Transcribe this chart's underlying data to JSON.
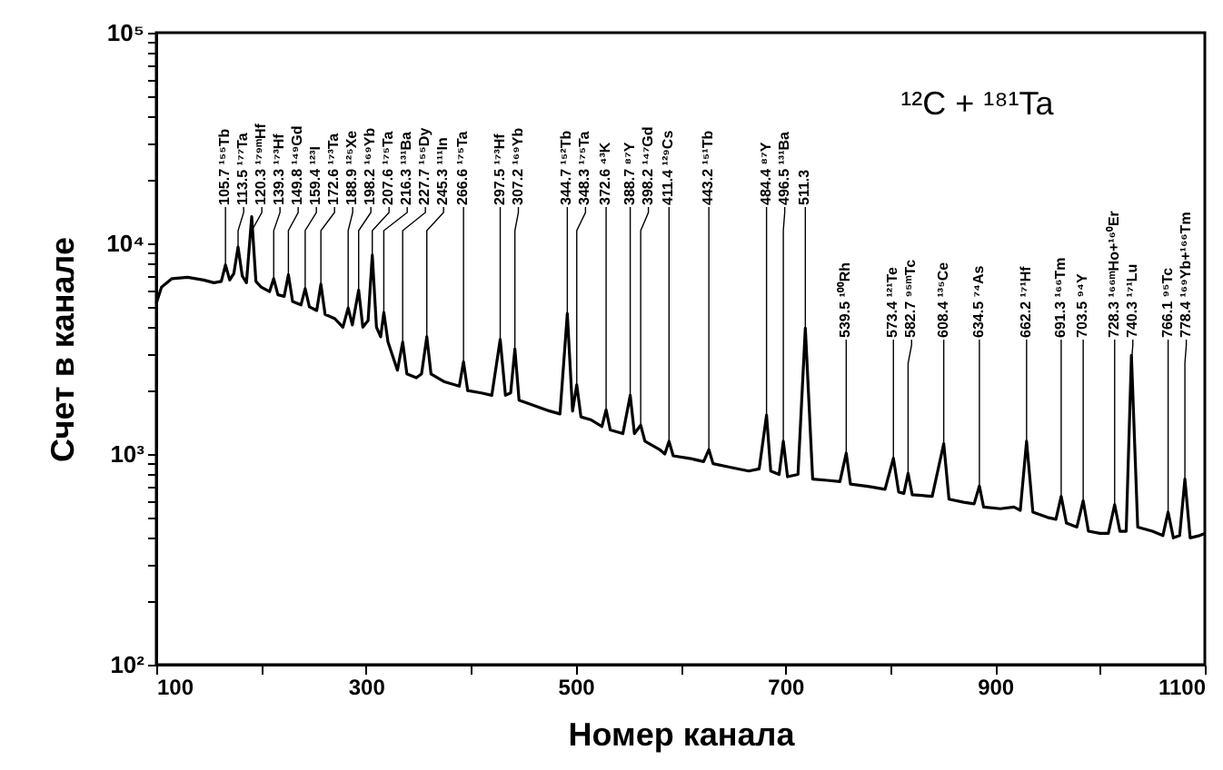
{
  "chart_data": {
    "type": "line",
    "title": "¹²C + ¹⁸¹Ta",
    "xlabel": "Номер канала",
    "ylabel": "Счет   в канале",
    "log": "y",
    "grid": false,
    "marker": "none",
    "line_style": "solid",
    "xlim": [
      100,
      1100
    ],
    "ylim": [
      100,
      100000
    ],
    "xticks": [
      100,
      {
        "value": 200,
        "label": null
      },
      300,
      {
        "value": 400,
        "label": null
      },
      500,
      {
        "value": 600,
        "label": null
      },
      700,
      {
        "value": 800,
        "label": null
      },
      900,
      {
        "value": 1000,
        "label": null
      },
      1100
    ],
    "yticks": [
      {
        "value": 100,
        "label": "10²"
      },
      {
        "value": 200,
        "label": null
      },
      {
        "value": 300,
        "label": null
      },
      {
        "value": 400,
        "label": null
      },
      {
        "value": 500,
        "label": null
      },
      {
        "value": 600,
        "label": null
      },
      {
        "value": 700,
        "label": null
      },
      {
        "value": 800,
        "label": null
      },
      {
        "value": 900,
        "label": null
      },
      {
        "value": 1000,
        "label": "10³"
      },
      {
        "value": 2000,
        "label": null
      },
      {
        "value": 3000,
        "label": null
      },
      {
        "value": 4000,
        "label": null
      },
      {
        "value": 5000,
        "label": null
      },
      {
        "value": 6000,
        "label": null
      },
      {
        "value": 7000,
        "label": null
      },
      {
        "value": 8000,
        "label": null
      },
      {
        "value": 9000,
        "label": null
      },
      {
        "value": 10000,
        "label": "10⁴"
      },
      {
        "value": 20000,
        "label": null
      },
      {
        "value": 30000,
        "label": null
      },
      {
        "value": 40000,
        "label": null
      },
      {
        "value": 50000,
        "label": null
      },
      {
        "value": 60000,
        "label": null
      },
      {
        "value": 70000,
        "label": null
      },
      {
        "value": 80000,
        "label": null
      },
      {
        "value": 90000,
        "label": null
      },
      {
        "value": 100000,
        "label": "10⁵"
      }
    ],
    "series": [
      {
        "color": "#000000",
        "x": [
          100,
          105,
          115,
          130,
          145,
          155,
          162,
          166,
          170,
          174,
          178,
          182,
          186,
          191,
          195,
          200,
          208,
          212,
          216,
          222,
          226,
          230,
          238,
          242,
          246,
          253,
          257,
          261,
          270,
          278,
          283,
          287,
          293,
          297,
          302,
          306,
          310,
          314,
          317,
          321,
          330,
          335,
          339,
          348,
          353,
          358,
          362,
          375,
          389,
          393,
          397,
          410,
          420,
          428,
          433,
          438,
          442,
          446,
          460,
          475,
          485,
          492,
          497,
          501,
          505,
          515,
          525,
          529,
          533,
          545,
          552,
          556,
          562,
          566,
          580,
          585,
          589,
          593,
          610,
          622,
          627,
          631,
          650,
          665,
          675,
          682,
          686,
          694,
          698,
          702,
          712,
          719,
          726,
          740,
          752,
          758,
          762,
          780,
          795,
          803,
          808,
          813,
          817,
          821,
          840,
          851,
          856,
          870,
          880,
          885,
          889,
          905,
          918,
          924,
          930,
          936,
          950,
          958,
          963,
          968,
          978,
          984,
          989,
          1000,
          1008,
          1014,
          1019,
          1025,
          1030,
          1036,
          1050,
          1060,
          1065,
          1070,
          1076,
          1081,
          1086,
          1095,
          1100
        ],
        "values": [
          5200,
          6200,
          6800,
          6900,
          6700,
          6500,
          6600,
          7900,
          6700,
          7200,
          9600,
          7000,
          6500,
          13400,
          6600,
          6200,
          5900,
          6800,
          5700,
          5600,
          7100,
          5300,
          5100,
          6100,
          5000,
          4800,
          6400,
          4600,
          4400,
          4000,
          4940,
          4100,
          6000,
          4000,
          4300,
          8800,
          4000,
          3600,
          4700,
          3400,
          2500,
          3400,
          2400,
          2300,
          2400,
          3600,
          2400,
          2200,
          2100,
          2740,
          2000,
          1950,
          1900,
          3500,
          1900,
          1950,
          3150,
          1800,
          1700,
          1600,
          1550,
          4640,
          1600,
          2130,
          1500,
          1450,
          1350,
          1620,
          1300,
          1250,
          1900,
          1250,
          1370,
          1150,
          1050,
          1000,
          1150,
          980,
          950,
          920,
          1050,
          900,
          860,
          830,
          850,
          1530,
          830,
          800,
          1150,
          780,
          800,
          3960,
          760,
          750,
          740,
          1010,
          720,
          700,
          680,
          955,
          660,
          650,
          810,
          640,
          630,
          1120,
          610,
          590,
          580,
          705,
          560,
          550,
          560,
          540,
          1150,
          530,
          500,
          490,
          630,
          470,
          450,
          600,
          430,
          420,
          420,
          575,
          430,
          430,
          2940,
          450,
          430,
          410,
          530,
          400,
          410,
          760,
          400,
          410,
          420
        ]
      }
    ],
    "annotations": [
      {
        "text": "105.7 ¹⁵⁵Tb",
        "x": 166,
        "y": 7900
      },
      {
        "text": "113.5 ¹⁷⁷Ta",
        "x": 178,
        "y": 9600
      },
      {
        "text": "120.3 ¹⁷⁹ᵐHf",
        "x": 191,
        "y": 13400
      },
      {
        "text": "139.3 ¹⁷³Hf",
        "x": 212,
        "y": 6800
      },
      {
        "text": "149.8 ¹⁴⁹Gd",
        "x": 226,
        "y": 7100
      },
      {
        "text": "159.4 ¹²³I",
        "x": 242,
        "y": 6100
      },
      {
        "text": "172.6 ¹⁷³Ta",
        "x": 257,
        "y": 6400
      },
      {
        "text": "188.9 ¹²⁵Xe",
        "x": 283,
        "y": 4940
      },
      {
        "text": "198.2 ¹⁶⁹Yb",
        "x": 293,
        "y": 6000
      },
      {
        "text": "207.6 ¹⁷⁵Ta",
        "x": 306,
        "y": 8800
      },
      {
        "text": "216.3 ¹³¹Ba",
        "x": 317,
        "y": 4700
      },
      {
        "text": "227.7 ¹⁵⁵Dy",
        "x": 335,
        "y": 3400
      },
      {
        "text": "245.3 ¹¹¹In",
        "x": 358,
        "y": 3600
      },
      {
        "text": "266.6 ¹⁷⁵Ta",
        "x": 393,
        "y": 2740
      },
      {
        "text": "297.5 ¹⁷³Hf",
        "x": 428,
        "y": 3500
      },
      {
        "text": "307.2 ¹⁶⁹Yb",
        "x": 442,
        "y": 3150
      },
      {
        "text": "344.7 ¹⁵²Tb",
        "x": 492,
        "y": 4640
      },
      {
        "text": "348.3 ¹⁷⁵Ta",
        "x": 501,
        "y": 2130
      },
      {
        "text": "372.6 ⁴³K",
        "x": 529,
        "y": 1620
      },
      {
        "text": "388.7 ⁸⁷Y",
        "x": 552,
        "y": 1900
      },
      {
        "text": "398.2 ¹⁴⁷Gd",
        "x": 562,
        "y": 1370
      },
      {
        "text": "411.4 ¹²⁹Cs",
        "x": 589,
        "y": 1150
      },
      {
        "text": "443.2 ¹⁵¹Tb",
        "x": 627,
        "y": 1050
      },
      {
        "text": "484.4 ⁸⁷Y",
        "x": 682,
        "y": 1530
      },
      {
        "text": "496.5 ¹³¹Ba",
        "x": 698,
        "y": 1150
      },
      {
        "text": "511.3",
        "x": 719,
        "y": 3960
      },
      {
        "text": "539.5 ¹⁰⁰Rh",
        "x": 758,
        "y": 1010
      },
      {
        "text": "573.4 ¹²¹Te",
        "x": 803,
        "y": 955
      },
      {
        "text": "582.7 ⁹⁵ᵐTc",
        "x": 817,
        "y": 810
      },
      {
        "text": "608.4 ¹³⁵Ce",
        "x": 851,
        "y": 1120
      },
      {
        "text": "634.5 ⁷⁴As",
        "x": 885,
        "y": 705
      },
      {
        "text": "662.2 ¹⁷¹Hf",
        "x": 930,
        "y": 1150
      },
      {
        "text": "691.3 ¹⁶⁶Tm",
        "x": 963,
        "y": 630
      },
      {
        "text": "703.5 ⁹⁴Y",
        "x": 984,
        "y": 600
      },
      {
        "text": "728.3 ¹⁶⁶ᵐHo+¹⁶⁰Er",
        "x": 1014,
        "y": 575
      },
      {
        "text": "740.3 ¹⁷¹Lu",
        "x": 1030,
        "y": 2940
      },
      {
        "text": "766.1 ⁹⁵Tc",
        "x": 1065,
        "y": 530
      },
      {
        "text": "778.4 ¹⁶⁹Yb+¹⁶⁶Tm",
        "x": 1081,
        "y": 760
      }
    ]
  }
}
